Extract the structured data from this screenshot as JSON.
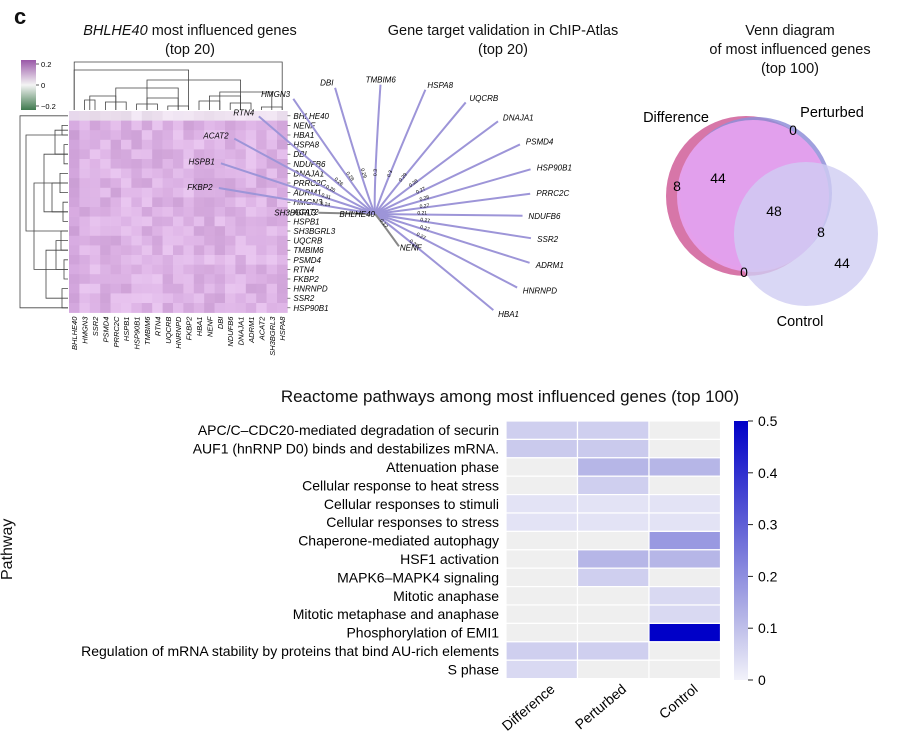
{
  "panel_label": "c",
  "heatmap": {
    "title_gene": "BHLHE40",
    "title_rest": " most influenced genes",
    "subtitle": "(top 20)",
    "colorbar_ticks": [
      "0.2",
      "0",
      "−0.2"
    ],
    "row_labels": [
      "BHLHE40",
      "NENF",
      "HBA1",
      "HSPA8",
      "DBI",
      "NDUFB6",
      "DNAJA1",
      "PRRC2C",
      "ADRM1",
      "HMGN3",
      "ACAT2",
      "HSPB1",
      "SH3BGRL3",
      "UQCRB",
      "TMBIM6",
      "PSMD4",
      "RTN4",
      "FKBP2",
      "HNRNPD",
      "SSR2",
      "HSP90B1"
    ],
    "col_labels": [
      "BHLHE40",
      "HMGN3",
      "SSR2",
      "PSMD4",
      "PRRC2C",
      "HSPB1",
      "HSP90B1",
      "TMBIM6",
      "RTN4",
      "UQCRB",
      "HNRNPD",
      "FKBP2",
      "HBA1",
      "NENF",
      "DBI",
      "NDUFB6",
      "DNAJA1",
      "ADRM1",
      "ACAT2",
      "SH3BGRL3",
      "HSPA8"
    ]
  },
  "network": {
    "title": "Gene target validation in ChIP-Atlas",
    "subtitle": "(top 20)",
    "center": "BHLHE40",
    "targets": [
      {
        "gene": "SH3BGRL3",
        "weight": "0.18",
        "color": "#888888"
      },
      {
        "gene": "FKBP2",
        "weight": "0.24",
        "color": "#9d95d8"
      },
      {
        "gene": "HSPB1",
        "weight": "0.31",
        "color": "#9d95d8"
      },
      {
        "gene": "ACAT2",
        "weight": "0.26",
        "color": "#9d95d8"
      },
      {
        "gene": "RTN4",
        "weight": "0.26",
        "color": "#9d95d8"
      },
      {
        "gene": "HMGN3",
        "weight": "0.28",
        "color": "#9d95d8"
      },
      {
        "gene": "DBI",
        "weight": "0.29",
        "color": "#9d95d8"
      },
      {
        "gene": "TMBIM6",
        "weight": "0.3",
        "color": "#9d95d8"
      },
      {
        "gene": "HSPA8",
        "weight": "0.3",
        "color": "#9d95d8"
      },
      {
        "gene": "UQCRB",
        "weight": "0.29",
        "color": "#9d95d8"
      },
      {
        "gene": "DNAJA1",
        "weight": "0.28",
        "color": "#9d95d8"
      },
      {
        "gene": "PSMD4",
        "weight": "0.27",
        "color": "#9d95d8"
      },
      {
        "gene": "HSP90B1",
        "weight": "0.28",
        "color": "#9d95d8"
      },
      {
        "gene": "PRRC2C",
        "weight": "0.27",
        "color": "#9d95d8"
      },
      {
        "gene": "NDUFB6",
        "weight": "0.21",
        "color": "#9d95d8"
      },
      {
        "gene": "SSR2",
        "weight": "0.27",
        "color": "#9d95d8"
      },
      {
        "gene": "ADRM1",
        "weight": "0.27",
        "color": "#9d95d8"
      },
      {
        "gene": "HNRNPD",
        "weight": "0.27",
        "color": "#9d95d8"
      },
      {
        "gene": "HBA1",
        "weight": "0.27",
        "color": "#9d95d8"
      },
      {
        "gene": "NENF",
        "weight": "0.17",
        "color": "#888888"
      }
    ]
  },
  "venn": {
    "title_line1": "Venn diagram",
    "title_line2": "of most influenced genes",
    "title_line3": "(top 100)",
    "set_labels": {
      "difference": "Difference",
      "perturbed": "Perturbed",
      "control": "Control"
    },
    "counts": {
      "difference_only": "8",
      "difference_and_perturbed": "44",
      "perturbed_only": "0",
      "all_three": "48",
      "perturbed_and_control": "8",
      "difference_and_control": "0",
      "control_only": "44"
    }
  },
  "chart_data": {
    "type": "heatmap",
    "title": "Reactome pathways among most influenced genes (top 100)",
    "ylabel": "Pathway",
    "xlabel": "",
    "columns": [
      "Difference",
      "Perturbed",
      "Control"
    ],
    "rows": [
      "APC/C–CDC20-mediated degradation of securin",
      "AUF1 (hnRNP D0) binds and destabilizes mRNA.",
      "Attenuation phase",
      "Cellular response to heat stress",
      "Cellular responses to stimuli",
      "Cellular responses to stress",
      "Chaperone-mediated autophagy",
      "HSF1 activation",
      "MAPK6–MAPK4 signaling",
      "Mitotic anaphase",
      "Mitotic metaphase and anaphase",
      "Phosphorylation of EMI1",
      "Regulation of mRNA stability by proteins that bind AU-rich elements",
      "S phase"
    ],
    "values": [
      [
        0.07,
        0.07,
        0.0
      ],
      [
        0.08,
        0.08,
        0.0
      ],
      [
        0.0,
        0.12,
        0.12
      ],
      [
        0.0,
        0.07,
        0.0
      ],
      [
        0.03,
        0.03,
        0.03
      ],
      [
        0.03,
        0.03,
        0.03
      ],
      [
        0.0,
        0.0,
        0.18
      ],
      [
        0.0,
        0.12,
        0.12
      ],
      [
        0.0,
        0.07,
        0.0
      ],
      [
        0.0,
        0.0,
        0.05
      ],
      [
        0.0,
        0.0,
        0.05
      ],
      [
        0.0,
        0.0,
        0.5
      ],
      [
        0.07,
        0.07,
        0.0
      ],
      [
        0.05,
        0.0,
        0.0
      ]
    ],
    "colorbar": {
      "min": 0,
      "max": 0.5,
      "ticks": [
        "0",
        "0.1",
        "0.2",
        "0.3",
        "0.4",
        "0.5"
      ]
    }
  }
}
